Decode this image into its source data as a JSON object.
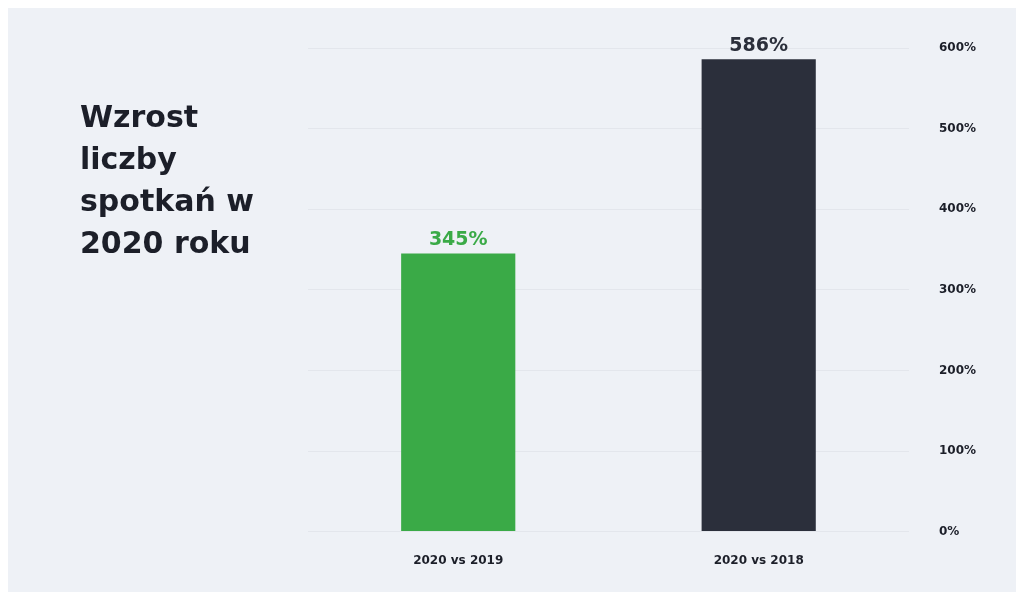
{
  "chart_data": {
    "type": "bar",
    "title": "Wzrost liczby spotkań w 2020 roku",
    "categories": [
      "2020 vs 2019",
      "2020 vs 2018"
    ],
    "values": [
      345,
      586
    ],
    "colors": [
      "#3aaa47",
      "#2b2f3b"
    ],
    "value_labels": [
      "345%",
      "586%"
    ],
    "ylim": [
      0,
      600
    ],
    "yticks": [
      {
        "value": 0,
        "label": "0%"
      },
      {
        "value": 100,
        "label": "100%"
      },
      {
        "value": 200,
        "label": "200%"
      },
      {
        "value": 300,
        "label": "300%"
      },
      {
        "value": 400,
        "label": "400%"
      },
      {
        "value": 500,
        "label": "500%"
      },
      {
        "value": 600,
        "label": "600%"
      }
    ],
    "grid": "y"
  }
}
